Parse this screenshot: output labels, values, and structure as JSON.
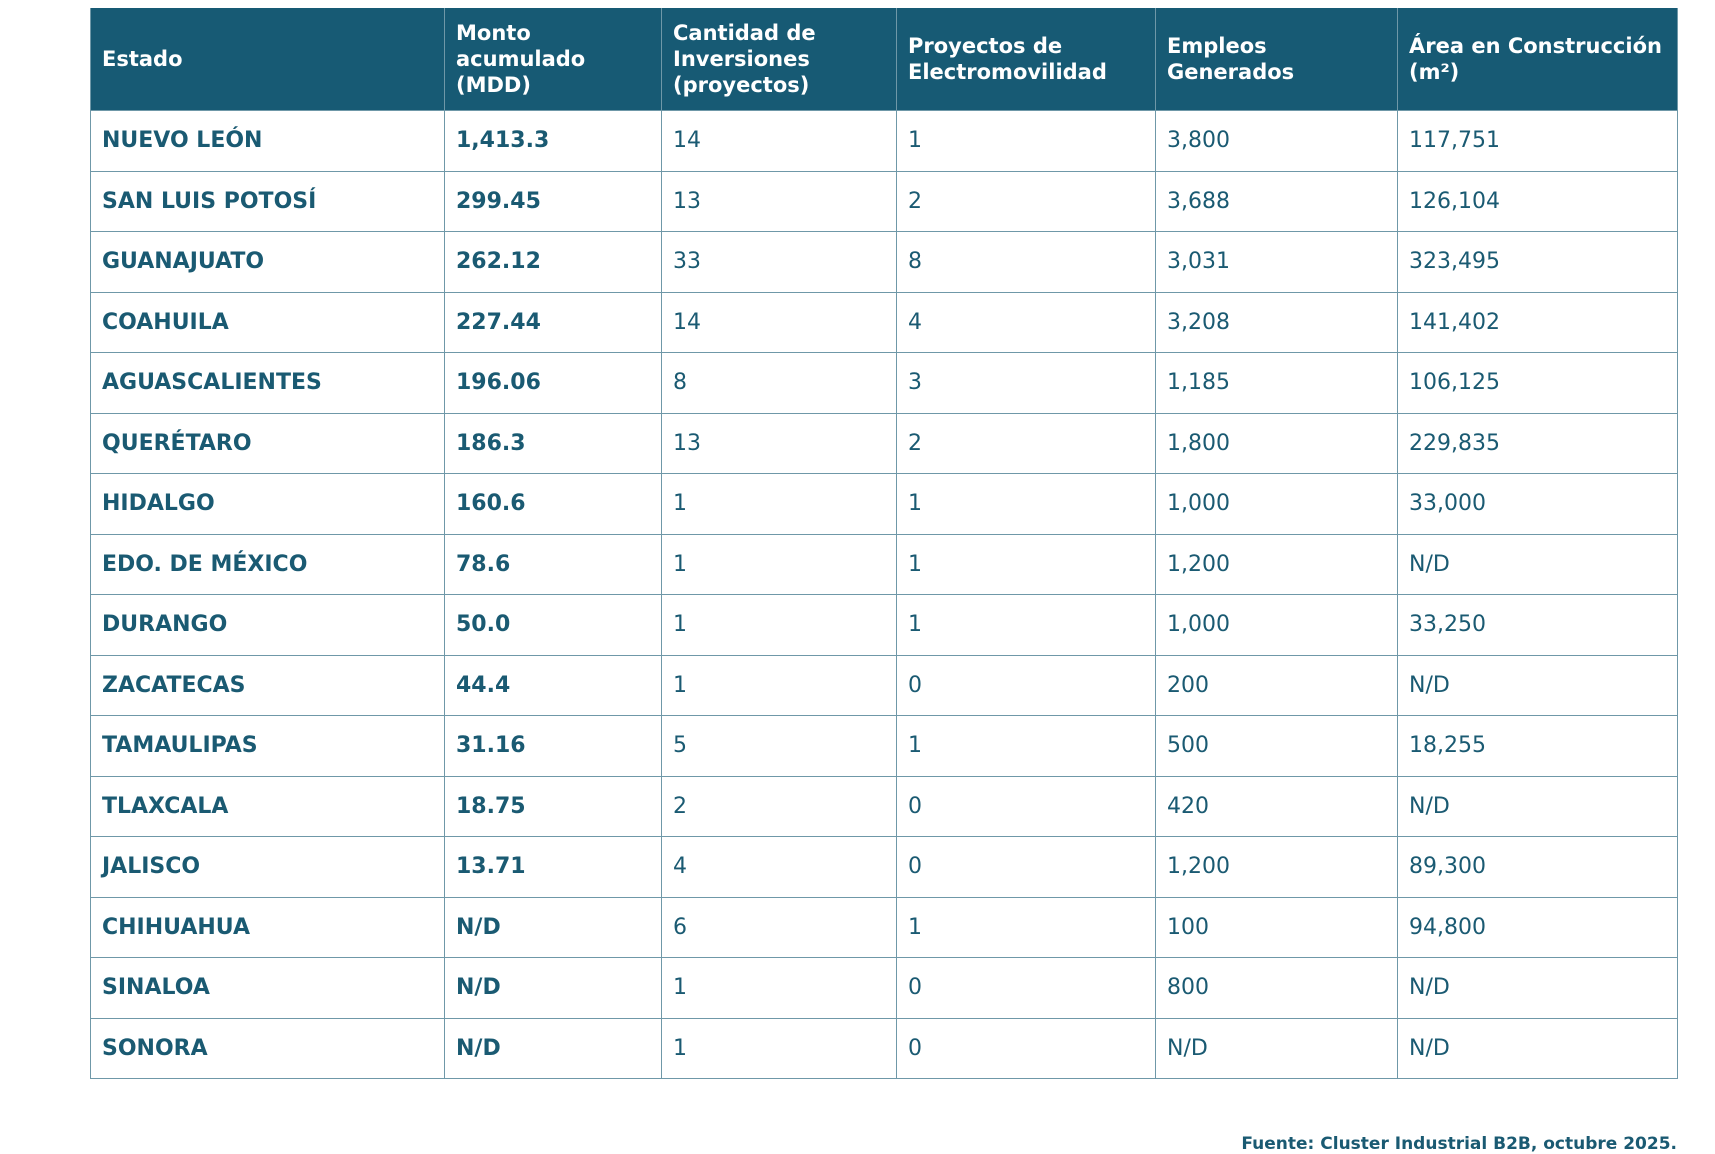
{
  "table": {
    "header": [
      "Estado",
      "Monto\nacumulado\n(MDD)",
      "Cantidad de\nInversiones\n(proyectos)",
      "Proyectos de\nElectromovilidad",
      "Empleos\nGenerados",
      "Área en Construcción\n(m²)"
    ],
    "rows": [
      [
        "NUEVO LEÓN",
        "1,413.3",
        "14",
        "1",
        "3,800",
        "117,751"
      ],
      [
        "SAN LUIS POTOSÍ",
        "299.45",
        "13",
        "2",
        "3,688",
        "126,104"
      ],
      [
        "GUANAJUATO",
        "262.12",
        "33",
        "8",
        "3,031",
        "323,495"
      ],
      [
        "COAHUILA",
        "227.44",
        "14",
        "4",
        "3,208",
        "141,402"
      ],
      [
        "AGUASCALIENTES",
        "196.06",
        "8",
        "3",
        "1,185",
        "106,125"
      ],
      [
        "QUERÉTARO",
        "186.3",
        "13",
        "2",
        "1,800",
        "229,835"
      ],
      [
        "HIDALGO",
        "160.6",
        "1",
        "1",
        "1,000",
        "33,000"
      ],
      [
        "EDO. DE MÉXICO",
        "78.6",
        "1",
        "1",
        "1,200",
        "N/D"
      ],
      [
        "DURANGO",
        "50.0",
        "1",
        "1",
        "1,000",
        "33,250"
      ],
      [
        "ZACATECAS",
        "44.4",
        "1",
        "0",
        "200",
        "N/D"
      ],
      [
        "TAMAULIPAS",
        "31.16",
        "5",
        "1",
        "500",
        "18,255"
      ],
      [
        "TLAXCALA",
        "18.75",
        "2",
        "0",
        "420",
        "N/D"
      ],
      [
        "JALISCO",
        "13.71",
        "4",
        "0",
        "1,200",
        "89,300"
      ],
      [
        "CHIHUAHUA",
        "N/D",
        "6",
        "1",
        "100",
        "94,800"
      ],
      [
        "SINALOA",
        "N/D",
        "1",
        "0",
        "800",
        "N/D"
      ],
      [
        "SONORA",
        "N/D",
        "1",
        "0",
        "N/D",
        "N/D"
      ]
    ]
  },
  "source": "Fuente: Cluster Industrial B2B, octubre 2025."
}
